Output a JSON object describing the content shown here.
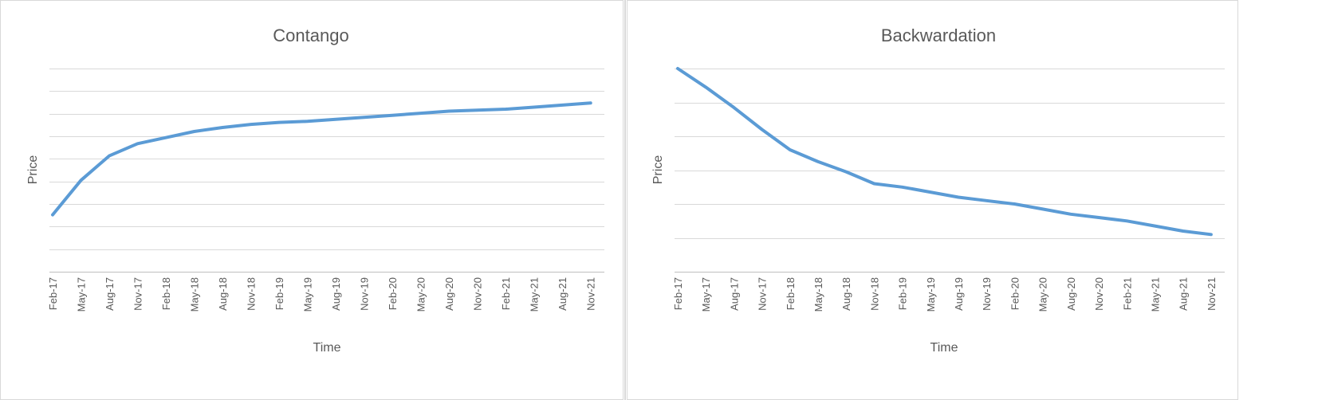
{
  "chart_data": [
    {
      "type": "line",
      "title": "Contango",
      "xlabel": "Time",
      "ylabel": "Price",
      "ylim": [
        0,
        10
      ],
      "grid": true,
      "legend": "none",
      "line_color": "#5b9bd5",
      "categories": [
        "Feb-17",
        "May-17",
        "Aug-17",
        "Nov-17",
        "Feb-18",
        "May-18",
        "Aug-18",
        "Nov-18",
        "Feb-19",
        "May-19",
        "Aug-19",
        "Nov-19",
        "Feb-20",
        "May-20",
        "Aug-20",
        "Nov-20",
        "Feb-21",
        "May-21",
        "Aug-21",
        "Nov-21"
      ],
      "values": [
        2.8,
        4.5,
        5.7,
        6.3,
        6.6,
        6.9,
        7.1,
        7.25,
        7.35,
        7.4,
        7.5,
        7.6,
        7.7,
        7.8,
        7.9,
        7.95,
        8.0,
        8.1,
        8.2,
        8.3
      ]
    },
    {
      "type": "line",
      "title": "Backwardation",
      "xlabel": "Time",
      "ylabel": "Price",
      "ylim": [
        0,
        6
      ],
      "grid": true,
      "legend": "none",
      "line_color": "#5b9bd5",
      "categories": [
        "Feb-17",
        "May-17",
        "Aug-17",
        "Nov-17",
        "Feb-18",
        "May-18",
        "Aug-18",
        "Nov-18",
        "Feb-19",
        "May-19",
        "Aug-19",
        "Nov-19",
        "Feb-20",
        "May-20",
        "Aug-20",
        "Nov-20",
        "Feb-21",
        "May-21",
        "Aug-21",
        "Nov-21"
      ],
      "values": [
        6.0,
        5.45,
        4.85,
        4.2,
        3.6,
        3.25,
        2.95,
        2.6,
        2.5,
        2.35,
        2.2,
        2.1,
        2.0,
        1.85,
        1.7,
        1.6,
        1.5,
        1.35,
        1.2,
        1.1
      ]
    }
  ]
}
